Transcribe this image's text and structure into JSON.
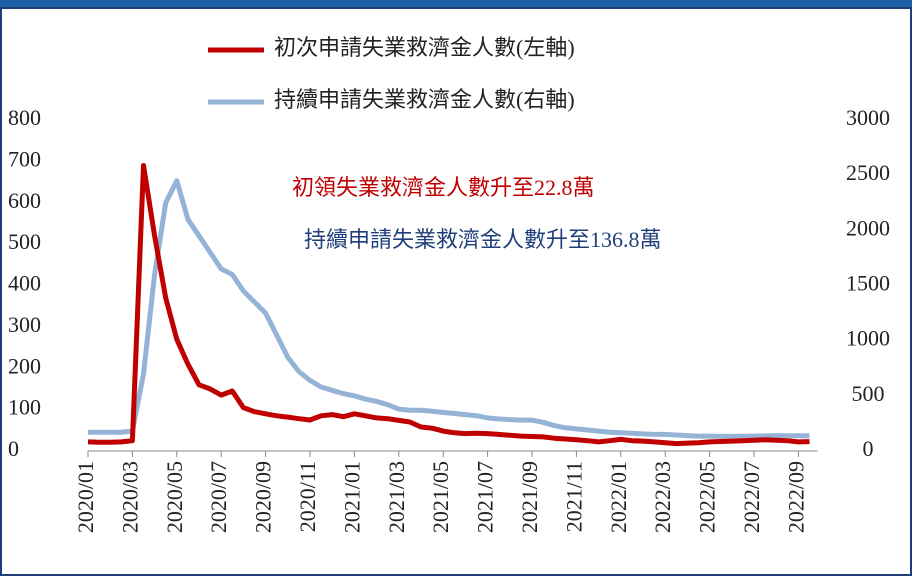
{
  "chart_data": {
    "type": "line",
    "categories": [
      "2020/01",
      null,
      null,
      null,
      "2020/03",
      null,
      null,
      null,
      "2020/05",
      null,
      null,
      null,
      "2020/07",
      null,
      null,
      null,
      "2020/09",
      null,
      null,
      null,
      "2020/11",
      null,
      null,
      null,
      "2021/01",
      null,
      null,
      null,
      "2021/03",
      null,
      null,
      null,
      "2021/05",
      null,
      null,
      null,
      "2021/07",
      null,
      null,
      null,
      "2021/09",
      null,
      null,
      null,
      "2021/11",
      null,
      null,
      null,
      "2022/01",
      null,
      null,
      null,
      "2022/03",
      null,
      null,
      null,
      "2022/05",
      null,
      null,
      null,
      "2022/07",
      null,
      null,
      null,
      "2022/09",
      null
    ],
    "series": [
      {
        "name": "初次申請失業救濟金人數(左軸)",
        "color": "#c00000",
        "values": [
          22,
          21,
          21,
          22,
          25,
          690,
          520,
          370,
          270,
          210,
          160,
          150,
          135,
          145,
          105,
          95,
          90,
          85,
          82,
          78,
          75,
          85,
          88,
          83,
          90,
          85,
          80,
          78,
          74,
          70,
          58,
          55,
          48,
          44,
          42,
          43,
          42,
          40,
          38,
          36,
          35,
          34,
          31,
          29,
          27,
          25,
          22,
          25,
          28,
          25,
          24,
          22,
          20,
          18,
          19,
          20,
          22,
          23,
          24,
          25,
          26,
          27,
          26,
          25,
          22,
          22.8
        ]
      },
      {
        "name": "持續申請失業救濟金人數(右軸)",
        "color": "#95b3d7",
        "axis": "y2",
        "values": [
          170,
          170,
          170,
          170,
          180,
          700,
          1600,
          2250,
          2450,
          2100,
          1950,
          1800,
          1650,
          1600,
          1450,
          1350,
          1250,
          1050,
          850,
          720,
          640,
          580,
          550,
          520,
          500,
          470,
          450,
          420,
          380,
          370,
          370,
          360,
          350,
          340,
          330,
          320,
          300,
          290,
          285,
          280,
          280,
          260,
          230,
          210,
          200,
          190,
          180,
          170,
          165,
          160,
          155,
          150,
          150,
          145,
          140,
          135,
          135,
          132,
          132,
          133,
          135,
          137,
          140,
          139,
          138,
          136.8
        ]
      }
    ],
    "ylim": [
      0,
      800
    ],
    "yticks": [
      0,
      100,
      200,
      300,
      400,
      500,
      600,
      700,
      800
    ],
    "y2lim": [
      0,
      3000
    ],
    "y2ticks": [
      0,
      500,
      1000,
      1500,
      2000,
      2500,
      3000
    ],
    "annotations": [
      {
        "text": "初領失業救濟金人數升至22.8萬",
        "color": "#c00000"
      },
      {
        "text": "持續申請失業救濟金人數升至136.8萬",
        "color": "#1f3f7a"
      }
    ],
    "legend": "top"
  }
}
